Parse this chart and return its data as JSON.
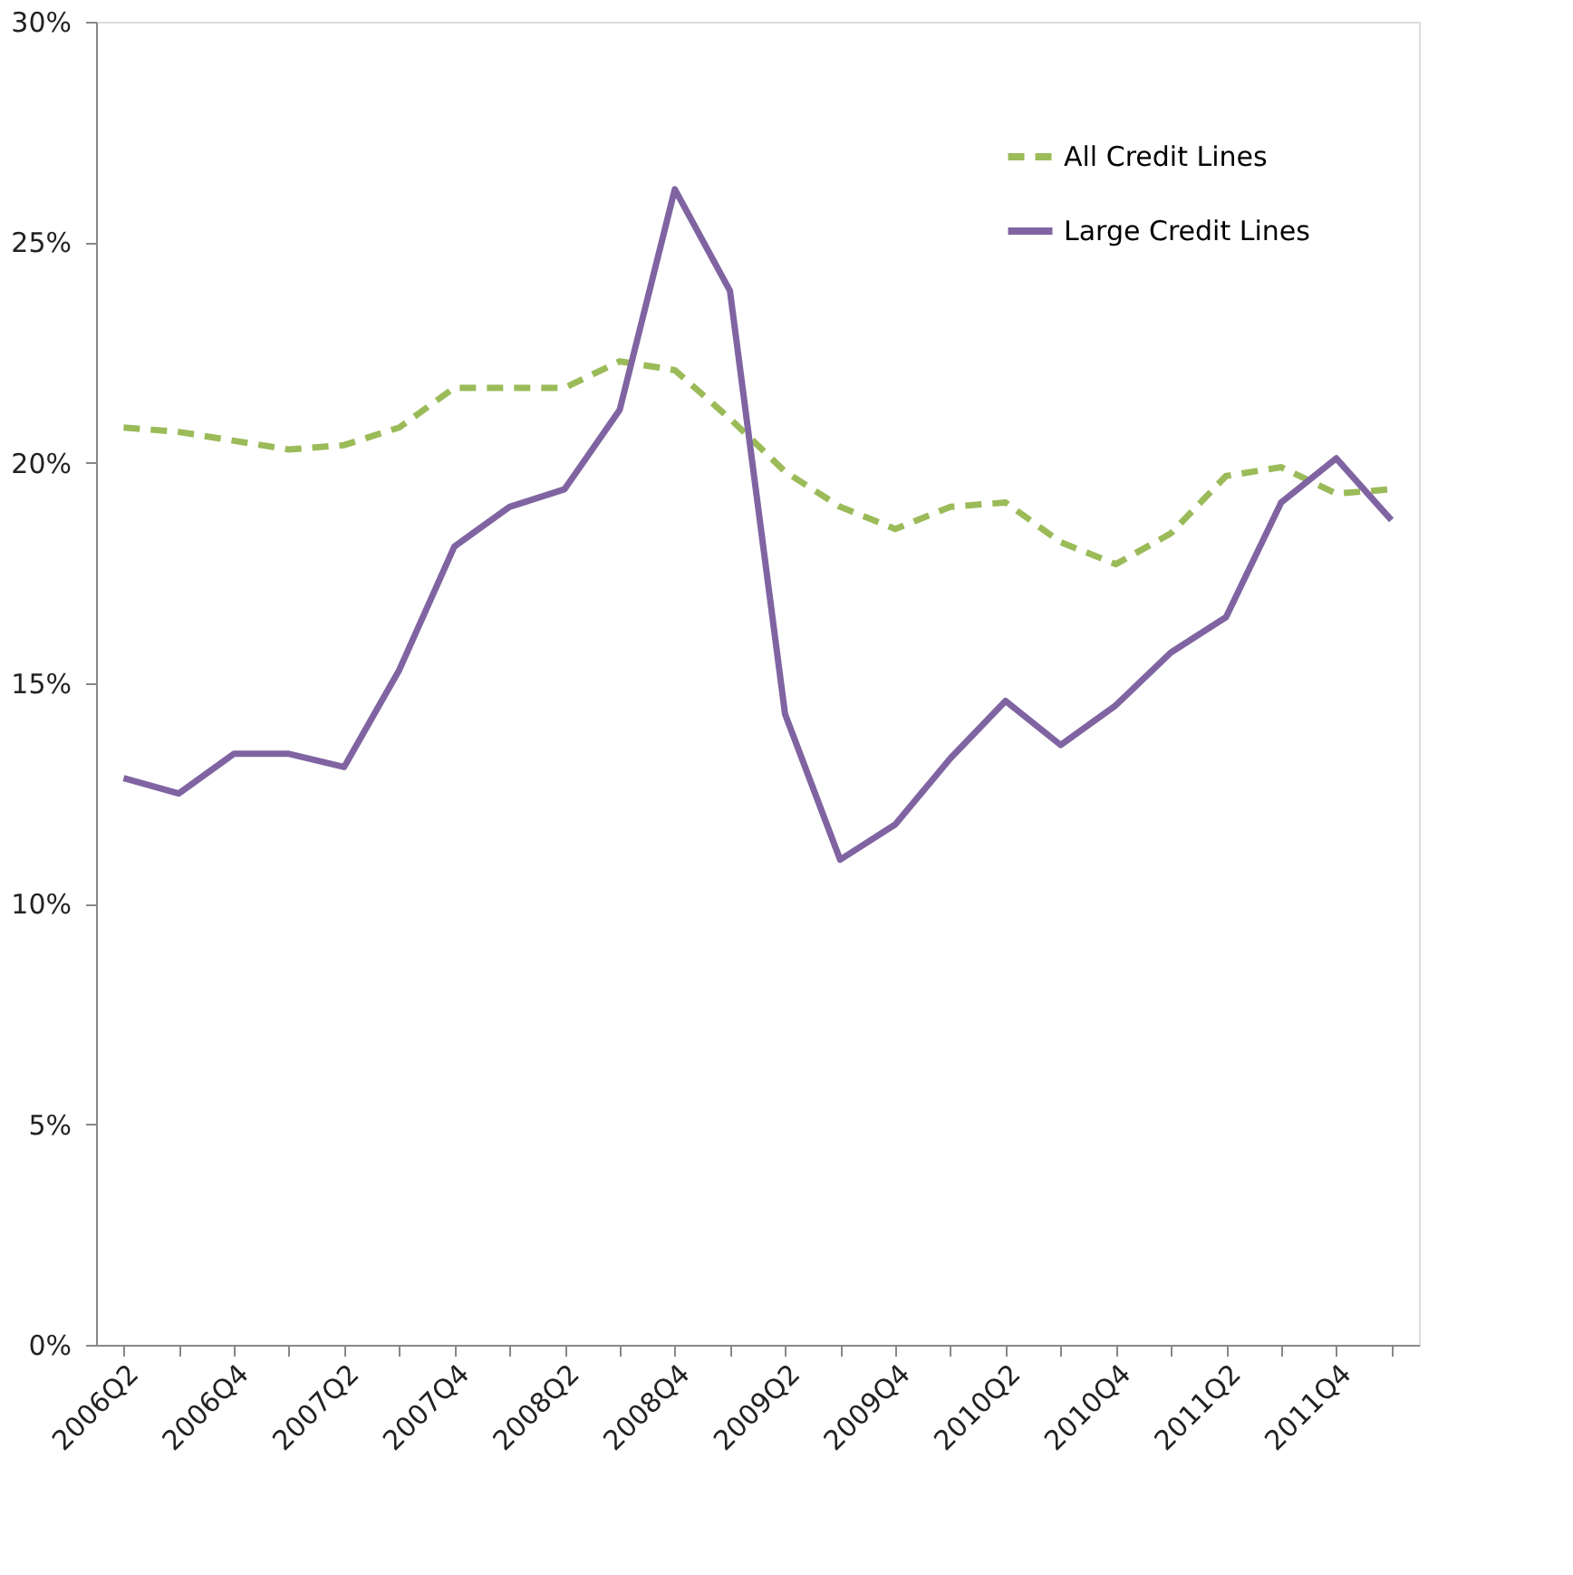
{
  "chart_data": {
    "type": "line",
    "categories": [
      "2006Q2",
      null,
      "2006Q4",
      null,
      "2007Q2",
      null,
      "2007Q4",
      null,
      "2008Q2",
      null,
      "2008Q4",
      null,
      "2009Q2",
      null,
      "2009Q4",
      null,
      "2010Q2",
      null,
      "2010Q4",
      null,
      "2011Q2",
      null,
      "2011Q4",
      null
    ],
    "series": [
      {
        "name": "All Credit Lines",
        "color": "#9bbb59",
        "line_style": "dashed",
        "values": [
          20.8,
          20.7,
          20.5,
          20.3,
          20.4,
          20.8,
          21.7,
          21.7,
          21.7,
          22.3,
          22.1,
          21.0,
          19.8,
          19.0,
          18.5,
          19.0,
          19.1,
          18.2,
          17.7,
          18.4,
          19.7,
          19.9,
          19.3,
          19.4
        ]
      },
      {
        "name": "Large Credit Lines",
        "color": "#8064a2",
        "line_style": "solid",
        "values": [
          12.85,
          12.5,
          13.4,
          13.4,
          13.1,
          15.3,
          18.1,
          19.0,
          19.4,
          21.2,
          26.2,
          23.9,
          14.3,
          11.0,
          11.8,
          13.3,
          14.6,
          13.6,
          14.5,
          15.7,
          16.5,
          19.1,
          20.1,
          18.7
        ]
      }
    ],
    "ylim": [
      0,
      30
    ],
    "yticks": [
      {
        "value": 0,
        "label": "0%"
      },
      {
        "value": 5,
        "label": "5%"
      },
      {
        "value": 10,
        "label": "10%"
      },
      {
        "value": 15,
        "label": "15%"
      },
      {
        "value": 20,
        "label": "20%"
      },
      {
        "value": 25,
        "label": "25%"
      },
      {
        "value": 30,
        "label": "30%"
      }
    ],
    "grid": false,
    "legend": "top right",
    "marker": "none"
  }
}
